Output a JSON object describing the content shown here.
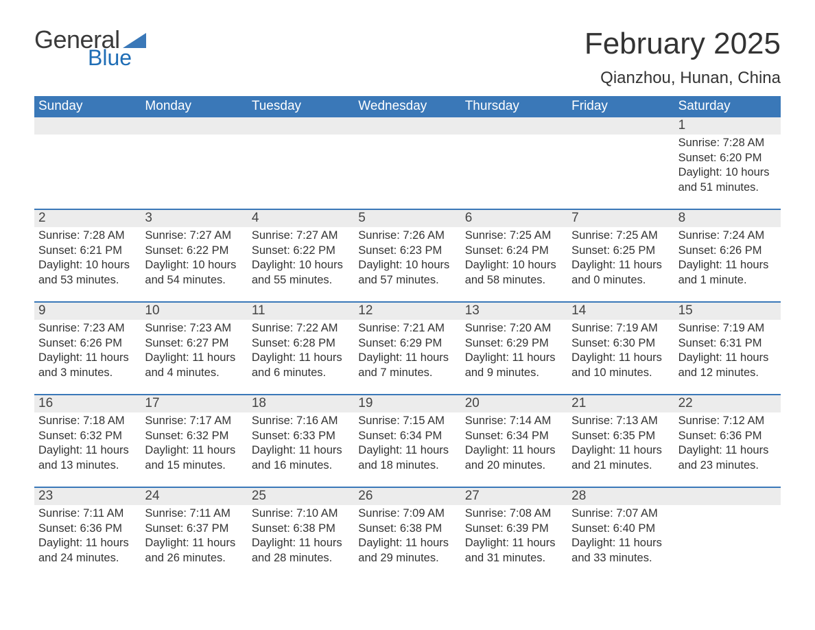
{
  "brand": {
    "text_general": "General",
    "text_blue": "Blue",
    "triangle_color": "#3a78b8"
  },
  "header": {
    "month_title": "February 2025",
    "location": "Qianzhou, Hunan, China"
  },
  "colors": {
    "header_blue": "#3a78b8",
    "accent_blue": "#1f6db5",
    "day_row_bg": "#ececec",
    "week_divider": "#3a78b8",
    "page_bg": "#ffffff",
    "header_text": "#ffffff",
    "body_text": "#333333"
  },
  "calendar": {
    "weekdays": [
      "Sunday",
      "Monday",
      "Tuesday",
      "Wednesday",
      "Thursday",
      "Friday",
      "Saturday"
    ],
    "weeks": [
      {
        "days": [
          null,
          null,
          null,
          null,
          null,
          null,
          {
            "num": "1",
            "sunrise": "Sunrise: 7:28 AM",
            "sunset": "Sunset: 6:20 PM",
            "daylight1": "Daylight: 10 hours",
            "daylight2": "and 51 minutes."
          }
        ]
      },
      {
        "days": [
          {
            "num": "2",
            "sunrise": "Sunrise: 7:28 AM",
            "sunset": "Sunset: 6:21 PM",
            "daylight1": "Daylight: 10 hours",
            "daylight2": "and 53 minutes."
          },
          {
            "num": "3",
            "sunrise": "Sunrise: 7:27 AM",
            "sunset": "Sunset: 6:22 PM",
            "daylight1": "Daylight: 10 hours",
            "daylight2": "and 54 minutes."
          },
          {
            "num": "4",
            "sunrise": "Sunrise: 7:27 AM",
            "sunset": "Sunset: 6:22 PM",
            "daylight1": "Daylight: 10 hours",
            "daylight2": "and 55 minutes."
          },
          {
            "num": "5",
            "sunrise": "Sunrise: 7:26 AM",
            "sunset": "Sunset: 6:23 PM",
            "daylight1": "Daylight: 10 hours",
            "daylight2": "and 57 minutes."
          },
          {
            "num": "6",
            "sunrise": "Sunrise: 7:25 AM",
            "sunset": "Sunset: 6:24 PM",
            "daylight1": "Daylight: 10 hours",
            "daylight2": "and 58 minutes."
          },
          {
            "num": "7",
            "sunrise": "Sunrise: 7:25 AM",
            "sunset": "Sunset: 6:25 PM",
            "daylight1": "Daylight: 11 hours",
            "daylight2": "and 0 minutes."
          },
          {
            "num": "8",
            "sunrise": "Sunrise: 7:24 AM",
            "sunset": "Sunset: 6:26 PM",
            "daylight1": "Daylight: 11 hours",
            "daylight2": "and 1 minute."
          }
        ]
      },
      {
        "days": [
          {
            "num": "9",
            "sunrise": "Sunrise: 7:23 AM",
            "sunset": "Sunset: 6:26 PM",
            "daylight1": "Daylight: 11 hours",
            "daylight2": "and 3 minutes."
          },
          {
            "num": "10",
            "sunrise": "Sunrise: 7:23 AM",
            "sunset": "Sunset: 6:27 PM",
            "daylight1": "Daylight: 11 hours",
            "daylight2": "and 4 minutes."
          },
          {
            "num": "11",
            "sunrise": "Sunrise: 7:22 AM",
            "sunset": "Sunset: 6:28 PM",
            "daylight1": "Daylight: 11 hours",
            "daylight2": "and 6 minutes."
          },
          {
            "num": "12",
            "sunrise": "Sunrise: 7:21 AM",
            "sunset": "Sunset: 6:29 PM",
            "daylight1": "Daylight: 11 hours",
            "daylight2": "and 7 minutes."
          },
          {
            "num": "13",
            "sunrise": "Sunrise: 7:20 AM",
            "sunset": "Sunset: 6:29 PM",
            "daylight1": "Daylight: 11 hours",
            "daylight2": "and 9 minutes."
          },
          {
            "num": "14",
            "sunrise": "Sunrise: 7:19 AM",
            "sunset": "Sunset: 6:30 PM",
            "daylight1": "Daylight: 11 hours",
            "daylight2": "and 10 minutes."
          },
          {
            "num": "15",
            "sunrise": "Sunrise: 7:19 AM",
            "sunset": "Sunset: 6:31 PM",
            "daylight1": "Daylight: 11 hours",
            "daylight2": "and 12 minutes."
          }
        ]
      },
      {
        "days": [
          {
            "num": "16",
            "sunrise": "Sunrise: 7:18 AM",
            "sunset": "Sunset: 6:32 PM",
            "daylight1": "Daylight: 11 hours",
            "daylight2": "and 13 minutes."
          },
          {
            "num": "17",
            "sunrise": "Sunrise: 7:17 AM",
            "sunset": "Sunset: 6:32 PM",
            "daylight1": "Daylight: 11 hours",
            "daylight2": "and 15 minutes."
          },
          {
            "num": "18",
            "sunrise": "Sunrise: 7:16 AM",
            "sunset": "Sunset: 6:33 PM",
            "daylight1": "Daylight: 11 hours",
            "daylight2": "and 16 minutes."
          },
          {
            "num": "19",
            "sunrise": "Sunrise: 7:15 AM",
            "sunset": "Sunset: 6:34 PM",
            "daylight1": "Daylight: 11 hours",
            "daylight2": "and 18 minutes."
          },
          {
            "num": "20",
            "sunrise": "Sunrise: 7:14 AM",
            "sunset": "Sunset: 6:34 PM",
            "daylight1": "Daylight: 11 hours",
            "daylight2": "and 20 minutes."
          },
          {
            "num": "21",
            "sunrise": "Sunrise: 7:13 AM",
            "sunset": "Sunset: 6:35 PM",
            "daylight1": "Daylight: 11 hours",
            "daylight2": "and 21 minutes."
          },
          {
            "num": "22",
            "sunrise": "Sunrise: 7:12 AM",
            "sunset": "Sunset: 6:36 PM",
            "daylight1": "Daylight: 11 hours",
            "daylight2": "and 23 minutes."
          }
        ]
      },
      {
        "days": [
          {
            "num": "23",
            "sunrise": "Sunrise: 7:11 AM",
            "sunset": "Sunset: 6:36 PM",
            "daylight1": "Daylight: 11 hours",
            "daylight2": "and 24 minutes."
          },
          {
            "num": "24",
            "sunrise": "Sunrise: 7:11 AM",
            "sunset": "Sunset: 6:37 PM",
            "daylight1": "Daylight: 11 hours",
            "daylight2": "and 26 minutes."
          },
          {
            "num": "25",
            "sunrise": "Sunrise: 7:10 AM",
            "sunset": "Sunset: 6:38 PM",
            "daylight1": "Daylight: 11 hours",
            "daylight2": "and 28 minutes."
          },
          {
            "num": "26",
            "sunrise": "Sunrise: 7:09 AM",
            "sunset": "Sunset: 6:38 PM",
            "daylight1": "Daylight: 11 hours",
            "daylight2": "and 29 minutes."
          },
          {
            "num": "27",
            "sunrise": "Sunrise: 7:08 AM",
            "sunset": "Sunset: 6:39 PM",
            "daylight1": "Daylight: 11 hours",
            "daylight2": "and 31 minutes."
          },
          {
            "num": "28",
            "sunrise": "Sunrise: 7:07 AM",
            "sunset": "Sunset: 6:40 PM",
            "daylight1": "Daylight: 11 hours",
            "daylight2": "and 33 minutes."
          },
          null
        ]
      }
    ]
  }
}
